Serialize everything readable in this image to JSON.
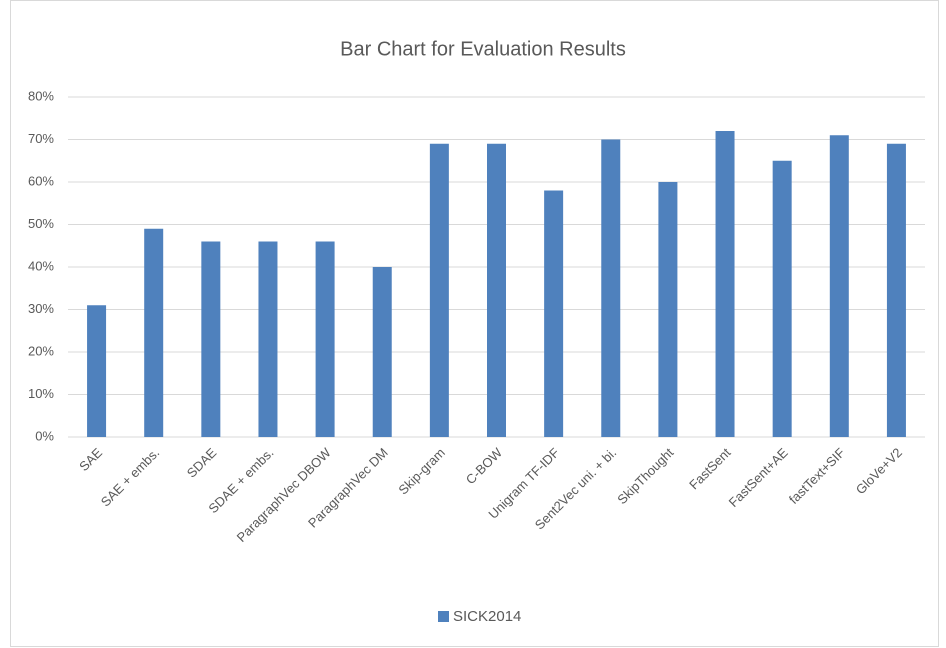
{
  "chart_data": {
    "type": "bar",
    "title": "Bar Chart for Evaluation Results",
    "categories": [
      "SAE",
      "SAE + embs.",
      "SDAE",
      "SDAE + embs.",
      "ParagraphVec DBOW",
      "ParagraphVec DM",
      "Skip-gram",
      "C-BOW",
      "Unigram TF-IDF",
      "Sent2Vec uni. + bi.",
      "SkipThought",
      "FastSent",
      "FastSent+AE",
      "fastText+SIF",
      "GloVe+V2"
    ],
    "series": [
      {
        "name": "SICK2014",
        "color": "#4f81bd",
        "values": [
          31,
          49,
          46,
          46,
          46,
          40,
          69,
          69,
          58,
          70,
          60,
          72,
          65,
          71,
          69
        ]
      }
    ],
    "ylim": [
      0,
      80
    ],
    "yticks": [
      {
        "value": 0,
        "label": "0%"
      },
      {
        "value": 10,
        "label": "10%"
      },
      {
        "value": 20,
        "label": "20%"
      },
      {
        "value": 30,
        "label": "30%"
      },
      {
        "value": 40,
        "label": "40%"
      },
      {
        "value": 50,
        "label": "50%"
      },
      {
        "value": 60,
        "label": "60%"
      },
      {
        "value": 70,
        "label": "70%"
      },
      {
        "value": 80,
        "label": "80%"
      }
    ],
    "grid": true,
    "legend": "bottom"
  }
}
